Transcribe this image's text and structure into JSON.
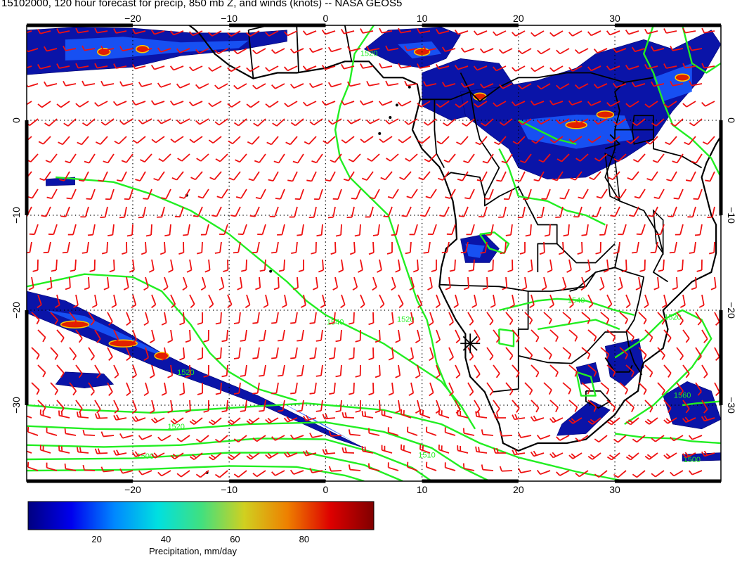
{
  "title": "15102000, 120 hour forecast for precip, 850 mb Z, and winds (knots) -- NASA GEOS5",
  "map": {
    "lon_range": [
      -31,
      41
    ],
    "lat_range": [
      -38,
      10
    ],
    "lon_ticks": [
      -20,
      -10,
      0,
      10,
      20,
      30
    ],
    "lat_ticks": [
      0,
      -10,
      -20,
      -30
    ],
    "lon_tick_labels": [
      "−20",
      "−10",
      "0",
      "10",
      "20",
      "30"
    ],
    "lat_tick_labels": [
      "0",
      "−10",
      "−20",
      "−30"
    ],
    "grid": "dotted",
    "marker": {
      "symbol": "asterisk",
      "lon": 15,
      "lat": -23.5
    }
  },
  "contours": {
    "color": "#22ee22",
    "labels": [
      {
        "text": "1520",
        "lon": -15.5,
        "lat": -32.3
      },
      {
        "text": "1500",
        "lon": -18.7,
        "lat": -35.4
      },
      {
        "text": "1540",
        "lon": 1.0,
        "lat": -21.3
      },
      {
        "text": "1520",
        "lon": 8.3,
        "lat": -21.0
      },
      {
        "text": "1520",
        "lon": -14.5,
        "lat": -26.6
      },
      {
        "text": "1510",
        "lon": 10.5,
        "lat": -35.3
      },
      {
        "text": "1520",
        "lon": 4.5,
        "lat": 7.0
      },
      {
        "text": "1520",
        "lon": 36.0,
        "lat": -20.8
      },
      {
        "text": "1560",
        "lon": 37.0,
        "lat": -29.0
      },
      {
        "text": "1540",
        "lon": 26.0,
        "lat": -19.0
      },
      {
        "text": "1500",
        "lon": 38.0,
        "lat": -35.8
      }
    ]
  },
  "winds": {
    "color": "#ee1111",
    "units": "knots"
  },
  "colorbar": {
    "title": "Precipitation, mm/day",
    "min": 0,
    "max": 100,
    "ticks": [
      20,
      40,
      60,
      80
    ],
    "tick_labels": [
      "20",
      "40",
      "60",
      "80"
    ],
    "colormap": [
      "#000080",
      "#0000ee",
      "#0088ff",
      "#00e0e0",
      "#40e080",
      "#d0d020",
      "#ee8000",
      "#dd0000",
      "#800000"
    ]
  }
}
